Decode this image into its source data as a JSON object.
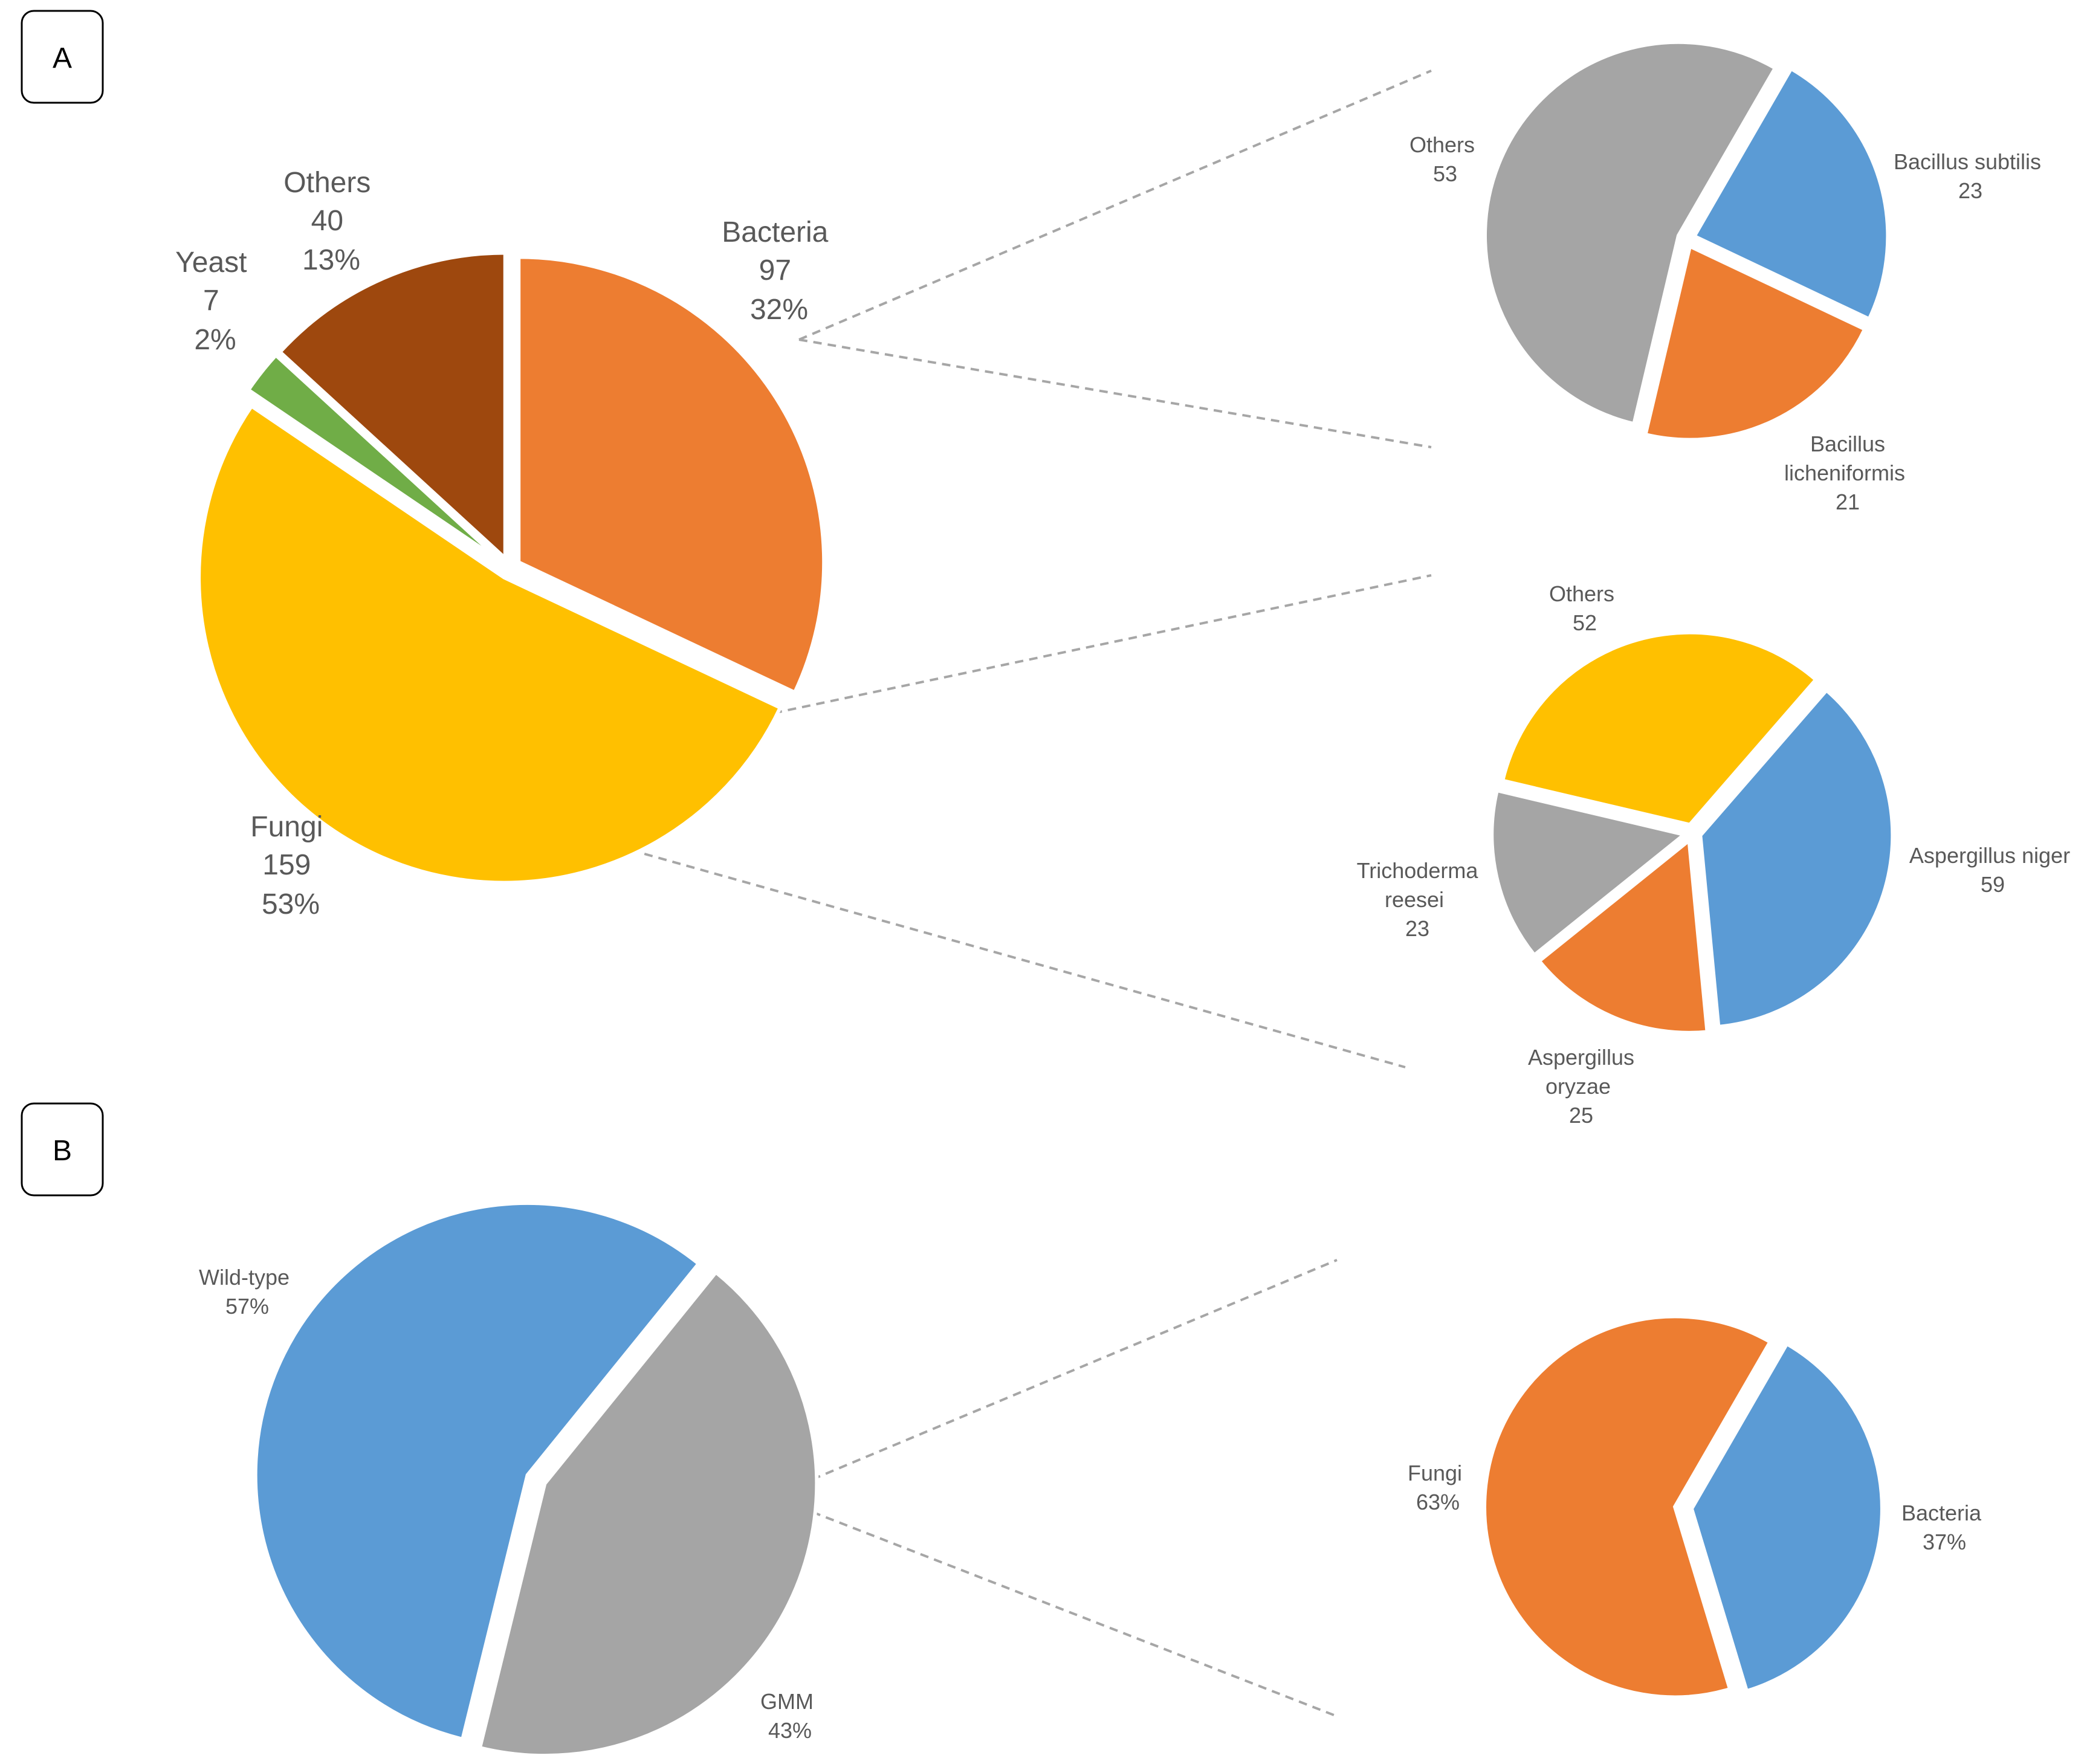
{
  "panels": {
    "a_label": "A",
    "b_label": "B"
  },
  "colors": {
    "orange": "#ED7D31",
    "yellow": "#FFC000",
    "green": "#70AD47",
    "brown": "#9E480E",
    "gray": "#A5A5A5",
    "blue": "#5B9BD5",
    "connector": "#A6A6A6",
    "label_text": "#595959"
  },
  "chart_data": [
    {
      "id": "a_main",
      "type": "pie",
      "slices": [
        {
          "label": "Bacteria",
          "value": 97,
          "percent": "32%",
          "color": "#ED7D31"
        },
        {
          "label": "Fungi",
          "value": 159,
          "percent": "53%",
          "color": "#FFC000"
        },
        {
          "label": "Yeast",
          "value": 7,
          "percent": "2%",
          "color": "#70AD47"
        },
        {
          "label": "Others",
          "value": 40,
          "percent": "13%",
          "color": "#9E480E"
        }
      ]
    },
    {
      "id": "a_bacteria",
      "type": "pie",
      "slices": [
        {
          "label": "Bacillus subtilis",
          "value": 23,
          "color": "#5B9BD5"
        },
        {
          "label": "Bacillus licheniformis",
          "value": 21,
          "color": "#ED7D31"
        },
        {
          "label": "Others",
          "value": 53,
          "color": "#A5A5A5"
        }
      ]
    },
    {
      "id": "a_fungi",
      "type": "pie",
      "slices": [
        {
          "label": "Aspergillus niger",
          "value": 59,
          "color": "#5B9BD5"
        },
        {
          "label": "Aspergillus oryzae",
          "value": 25,
          "color": "#ED7D31"
        },
        {
          "label": "Trichoderma reesei",
          "value": 23,
          "color": "#A5A5A5"
        },
        {
          "label": "Others",
          "value": 52,
          "color": "#FFC000"
        }
      ]
    },
    {
      "id": "b_main",
      "type": "pie",
      "slices": [
        {
          "label": "GMM",
          "percent": "43%",
          "value": 43,
          "color": "#A5A5A5"
        },
        {
          "label": "Wild-type",
          "percent": "57%",
          "value": 57,
          "color": "#5B9BD5"
        }
      ]
    },
    {
      "id": "b_gmm",
      "type": "pie",
      "slices": [
        {
          "label": "Bacteria",
          "percent": "37%",
          "value": 37,
          "color": "#5B9BD5"
        },
        {
          "label": "Fungi",
          "percent": "63%",
          "value": 63,
          "color": "#ED7D31"
        }
      ]
    }
  ]
}
